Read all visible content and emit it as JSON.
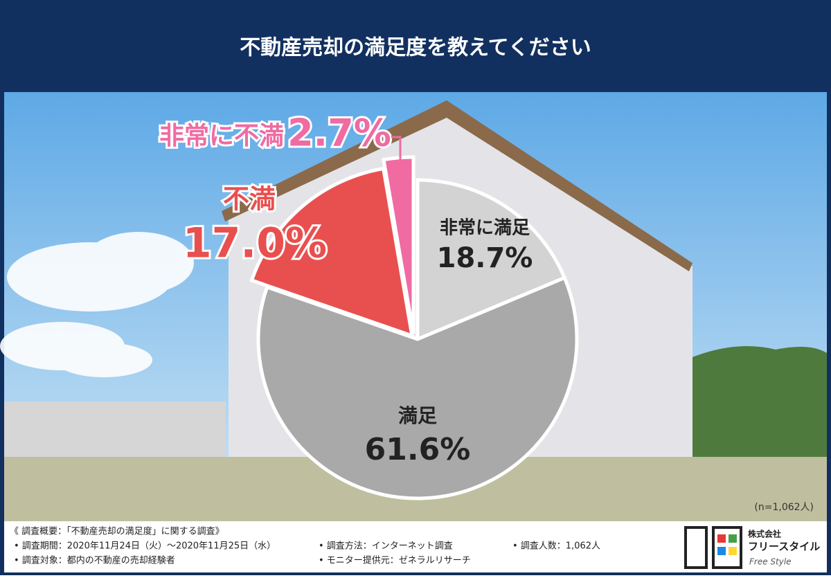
{
  "chart_data": {
    "type": "pie",
    "title": "不動産売却の満足度を教えてください",
    "categories": [
      "非常に満足",
      "満足",
      "不満",
      "非常に不満"
    ],
    "values": [
      18.7,
      61.6,
      17.0,
      2.7
    ],
    "value_labels": [
      "18.7%",
      "61.6%",
      "17.0%",
      "2.7%"
    ],
    "colors": [
      "#d3d3d3",
      "#a9a9a9",
      "#e8504f",
      "#ef6ba2"
    ],
    "sample_note": "(n=1,062人)"
  },
  "footer": {
    "heading": "《 調査概要：「不動産売却の満足度」に関する調査》",
    "items": [
      "• 調査期間：2020年11月24日（火）～2020年11月25日（水）",
      "• 調査方法：インターネット調査",
      "• 調査人数：1,062人",
      "• 調査対象：都内の不動産の売却経験者",
      "• モニター提供元：ゼネラルリサーチ"
    ],
    "logo": [
      "株式会社",
      "フリースタイル",
      "Free Style"
    ]
  }
}
